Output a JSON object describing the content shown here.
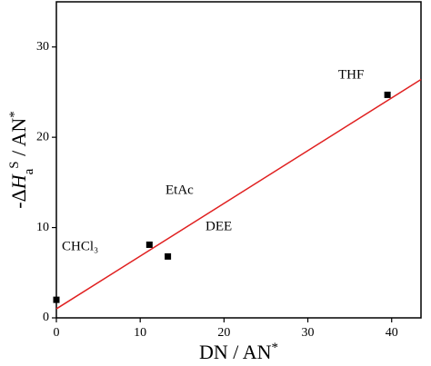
{
  "chart_data": {
    "type": "scatter",
    "x_label": [
      {
        "text": "DN / AN"
      },
      {
        "text": "*",
        "style": "sup"
      }
    ],
    "y_label": [
      {
        "text": "-Δ"
      },
      {
        "text": "H",
        "style": "italic"
      },
      {
        "text": "a",
        "style": "sub"
      },
      {
        "text": "S",
        "style": "sup"
      },
      {
        "text": " / AN"
      },
      {
        "text": "*",
        "style": "sup"
      }
    ],
    "series": [
      {
        "type": "scatter",
        "color": "#000000",
        "x": [
          0,
          11.1,
          13.3,
          39.5
        ],
        "values": [
          2.0,
          8.1,
          6.8,
          24.7
        ]
      },
      {
        "type": "line",
        "color": "#e02020",
        "x": [
          0,
          43.5
        ],
        "values": [
          1.0,
          26.4
        ]
      }
    ],
    "annotations": [
      "CHCl₃",
      "EtAc",
      "DEE",
      "THF"
    ],
    "xlim": [
      0,
      43.5
    ],
    "ylim": [
      0,
      35
    ],
    "xticks": [
      0,
      10,
      20,
      30,
      40
    ],
    "yticks": [
      0,
      10,
      20,
      30
    ],
    "grid": false
  }
}
